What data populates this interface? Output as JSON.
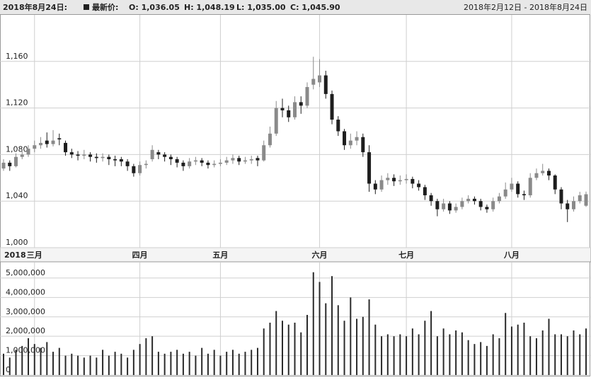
{
  "header": {
    "date": "2018年8月24日:",
    "legend_name": "最新价:",
    "open": "O: 1,036.05",
    "high": "H: 1,048.19",
    "low": "L: 1,035.00",
    "close": "C: 1,045.90",
    "range": "2018年2月12日 - 2018年8月24日"
  },
  "chart_data": [
    {
      "type": "candlestick",
      "up_color": "#8a8a8a",
      "down_color": "#1e1e1e",
      "grid": true,
      "ylim": [
        1000,
        1200
      ],
      "yticks": [
        {
          "value": 1000,
          "label": "1,000"
        },
        {
          "value": 1040,
          "label": "1,040"
        },
        {
          "value": 1080,
          "label": "1,080"
        },
        {
          "value": 1120,
          "label": "1,120"
        },
        {
          "value": 1160,
          "label": "1,160"
        }
      ],
      "year_label": "2018",
      "xticks": [
        {
          "value": 5,
          "label": "三月"
        },
        {
          "value": 22,
          "label": "四月"
        },
        {
          "value": 35,
          "label": "五月"
        },
        {
          "value": 51,
          "label": "六月"
        },
        {
          "value": 65,
          "label": "七月"
        },
        {
          "value": 82,
          "label": "八月"
        }
      ],
      "ohlc": [
        [
          1068,
          1076,
          1066,
          1073
        ],
        [
          1073,
          1075,
          1066,
          1070
        ],
        [
          1070,
          1081,
          1069,
          1078
        ],
        [
          1078,
          1084,
          1076,
          1080
        ],
        [
          1080,
          1088,
          1078,
          1085
        ],
        [
          1085,
          1092,
          1082,
          1088
        ],
        [
          1088,
          1095,
          1085,
          1090
        ],
        [
          1092,
          1099,
          1086,
          1089
        ],
        [
          1089,
          1101,
          1087,
          1092
        ],
        [
          1094,
          1098,
          1088,
          1093
        ],
        [
          1090,
          1092,
          1079,
          1082
        ],
        [
          1082,
          1085,
          1077,
          1080
        ],
        [
          1080,
          1083,
          1075,
          1079
        ],
        [
          1079,
          1084,
          1076,
          1080
        ],
        [
          1080,
          1082,
          1074,
          1078
        ],
        [
          1078,
          1081,
          1073,
          1077
        ],
        [
          1077,
          1081,
          1074,
          1078
        ],
        [
          1078,
          1080,
          1071,
          1076
        ],
        [
          1076,
          1079,
          1070,
          1075
        ],
        [
          1076,
          1078,
          1070,
          1074
        ],
        [
          1074,
          1076,
          1066,
          1070
        ],
        [
          1070,
          1072,
          1061,
          1064
        ],
        [
          1064,
          1074,
          1062,
          1071
        ],
        [
          1071,
          1075,
          1068,
          1072
        ],
        [
          1076,
          1088,
          1074,
          1084
        ],
        [
          1082,
          1084,
          1076,
          1080
        ],
        [
          1080,
          1082,
          1074,
          1078
        ],
        [
          1078,
          1080,
          1071,
          1076
        ],
        [
          1076,
          1078,
          1069,
          1073
        ],
        [
          1073,
          1075,
          1066,
          1070
        ],
        [
          1070,
          1077,
          1068,
          1074
        ],
        [
          1074,
          1078,
          1071,
          1075
        ],
        [
          1075,
          1077,
          1070,
          1073
        ],
        [
          1073,
          1075,
          1068,
          1071
        ],
        [
          1071,
          1075,
          1069,
          1072
        ],
        [
          1072,
          1076,
          1070,
          1073
        ],
        [
          1073,
          1078,
          1071,
          1075
        ],
        [
          1075,
          1080,
          1072,
          1077
        ],
        [
          1077,
          1079,
          1071,
          1074
        ],
        [
          1074,
          1078,
          1072,
          1075
        ],
        [
          1075,
          1079,
          1072,
          1076
        ],
        [
          1077,
          1079,
          1070,
          1075
        ],
        [
          1075,
          1092,
          1074,
          1088
        ],
        [
          1088,
          1104,
          1086,
          1098
        ],
        [
          1098,
          1126,
          1096,
          1120
        ],
        [
          1120,
          1128,
          1112,
          1118
        ],
        [
          1118,
          1122,
          1108,
          1112
        ],
        [
          1112,
          1130,
          1110,
          1125
        ],
        [
          1125,
          1130,
          1115,
          1122
        ],
        [
          1122,
          1142,
          1120,
          1138
        ],
        [
          1140,
          1164,
          1136,
          1145
        ],
        [
          1142,
          1162,
          1138,
          1148
        ],
        [
          1148,
          1152,
          1128,
          1132
        ],
        [
          1132,
          1135,
          1106,
          1110
        ],
        [
          1110,
          1113,
          1096,
          1100
        ],
        [
          1100,
          1102,
          1084,
          1088
        ],
        [
          1088,
          1098,
          1085,
          1092
        ],
        [
          1092,
          1100,
          1088,
          1095
        ],
        [
          1095,
          1098,
          1078,
          1082
        ],
        [
          1082,
          1088,
          1048,
          1055
        ],
        [
          1055,
          1058,
          1046,
          1050
        ],
        [
          1050,
          1062,
          1048,
          1058
        ],
        [
          1058,
          1064,
          1054,
          1060
        ],
        [
          1060,
          1063,
          1053,
          1057
        ],
        [
          1057,
          1062,
          1054,
          1058
        ],
        [
          1058,
          1063,
          1055,
          1059
        ],
        [
          1059,
          1061,
          1051,
          1055
        ],
        [
          1055,
          1058,
          1049,
          1052
        ],
        [
          1052,
          1054,
          1041,
          1045
        ],
        [
          1045,
          1047,
          1036,
          1040
        ],
        [
          1040,
          1042,
          1027,
          1033
        ],
        [
          1033,
          1042,
          1031,
          1038
        ],
        [
          1038,
          1040,
          1029,
          1032
        ],
        [
          1032,
          1038,
          1030,
          1035
        ],
        [
          1035,
          1043,
          1033,
          1040
        ],
        [
          1040,
          1045,
          1038,
          1042
        ],
        [
          1042,
          1044,
          1037,
          1040
        ],
        [
          1040,
          1042,
          1032,
          1035
        ],
        [
          1035,
          1037,
          1030,
          1033
        ],
        [
          1033,
          1043,
          1031,
          1040
        ],
        [
          1040,
          1047,
          1038,
          1044
        ],
        [
          1044,
          1056,
          1042,
          1050
        ],
        [
          1050,
          1060,
          1048,
          1055
        ],
        [
          1055,
          1057,
          1043,
          1046
        ],
        [
          1046,
          1049,
          1041,
          1045
        ],
        [
          1045,
          1064,
          1043,
          1060
        ],
        [
          1060,
          1068,
          1058,
          1064
        ],
        [
          1064,
          1072,
          1062,
          1066
        ],
        [
          1066,
          1068,
          1058,
          1062
        ],
        [
          1062,
          1063,
          1046,
          1050
        ],
        [
          1050,
          1052,
          1033,
          1038
        ],
        [
          1038,
          1041,
          1022,
          1033
        ],
        [
          1033,
          1044,
          1031,
          1040
        ],
        [
          1040,
          1048,
          1038,
          1045
        ],
        [
          1036.05,
          1048.19,
          1035.0,
          1045.9
        ]
      ]
    },
    {
      "type": "bar",
      "color": "#2a2a2a",
      "grid": true,
      "ylim": [
        0,
        5800000
      ],
      "yticks": [
        0,
        {
          "value": 1000000,
          "label": "1,000,000"
        },
        {
          "value": 2000000,
          "label": "2,000,000"
        },
        {
          "value": 3000000,
          "label": "3,000,000"
        },
        {
          "value": 4000000,
          "label": "4,000,000"
        },
        {
          "value": 5000000,
          "label": "5,000,000"
        }
      ],
      "values": [
        1100000,
        900000,
        1300000,
        1500000,
        1900000,
        1600000,
        1400000,
        1700000,
        1200000,
        1400000,
        1000000,
        1100000,
        1000000,
        900000,
        1000000,
        900000,
        1300000,
        1000000,
        1200000,
        1100000,
        900000,
        1300000,
        1600000,
        1900000,
        2000000,
        1200000,
        1100000,
        1200000,
        1300000,
        1100000,
        1200000,
        1000000,
        1400000,
        1100000,
        1300000,
        1000000,
        1200000,
        1300000,
        1100000,
        1200000,
        1300000,
        1400000,
        2400000,
        2700000,
        3300000,
        2800000,
        2600000,
        2700000,
        2200000,
        3100000,
        5300000,
        4800000,
        3700000,
        5100000,
        3600000,
        2800000,
        4000000,
        2900000,
        3000000,
        3900000,
        2600000,
        2000000,
        2100000,
        2000000,
        2100000,
        2000000,
        2400000,
        2100000,
        2800000,
        3300000,
        2000000,
        2400000,
        2100000,
        2300000,
        2200000,
        1800000,
        1600000,
        1700000,
        1500000,
        2100000,
        1900000,
        3200000,
        2500000,
        2600000,
        2700000,
        2000000,
        1900000,
        2300000,
        2900000,
        2100000,
        2100000,
        2000000,
        2300000,
        2100000,
        2400000
      ]
    }
  ]
}
